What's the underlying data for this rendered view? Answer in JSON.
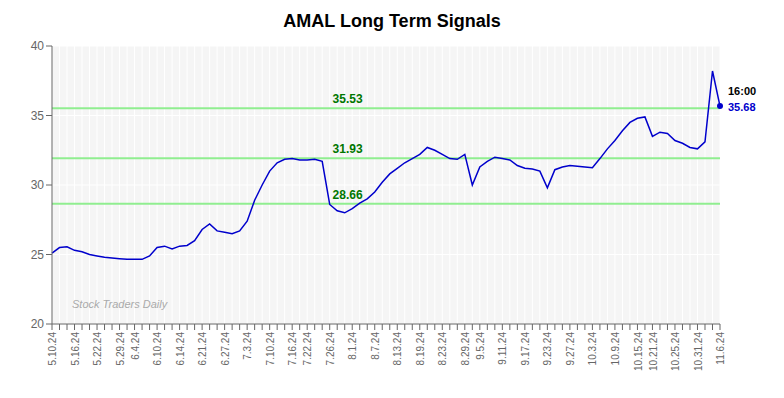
{
  "chart_data": {
    "type": "line",
    "title": "AMAL Long Term Signals",
    "color": "#0000cc",
    "grid": true,
    "ylim": [
      20,
      40
    ],
    "yticks": [
      20,
      25,
      30,
      35,
      40
    ],
    "hlines": [
      {
        "value": 35.53,
        "color": "#90ee90"
      },
      {
        "value": 31.93,
        "color": "#90ee90"
      },
      {
        "value": 28.66,
        "color": "#90ee90"
      }
    ],
    "annotations": [
      {
        "text": "35.53",
        "color": "#007700"
      },
      {
        "text": "31.93",
        "color": "#007700"
      },
      {
        "text": "28.66",
        "color": "#007700"
      }
    ],
    "end_label_time": "16:00",
    "end_label_price": "35.68",
    "watermark": "Stock Traders Daily",
    "categories": [
      "5.10.24",
      null,
      null,
      "5.16.24",
      null,
      null,
      "5.22.24",
      null,
      null,
      "5.29.24",
      null,
      "6.4.24",
      null,
      null,
      "6.10.24",
      null,
      null,
      "6.14.24",
      null,
      null,
      "6.21.24",
      null,
      null,
      "6.27.24",
      null,
      null,
      "7.3.24",
      null,
      null,
      "7.10.24",
      null,
      null,
      "7.16.24",
      null,
      "7.22.24",
      null,
      null,
      "7.26.24",
      null,
      null,
      "8.1.24",
      null,
      null,
      "8.7.24",
      null,
      null,
      "8.13.24",
      null,
      null,
      "8.19.24",
      null,
      null,
      "8.23.24",
      null,
      null,
      "8.29.24",
      null,
      "9.5.24",
      null,
      null,
      "9.11.24",
      null,
      null,
      "9.17.24",
      null,
      null,
      "9.23.24",
      null,
      null,
      "9.27.24",
      null,
      null,
      "10.3.24",
      null,
      null,
      "10.9.24",
      null,
      null,
      "10.15.24",
      null,
      "10.21.24",
      null,
      null,
      "10.25.24",
      null,
      null,
      "10.31.24",
      null,
      null,
      "11.6.24"
    ],
    "values": [
      25.1,
      25.5,
      25.55,
      25.3,
      25.2,
      25.0,
      24.9,
      24.8,
      24.75,
      24.7,
      24.65,
      24.65,
      24.65,
      24.9,
      25.5,
      25.6,
      25.4,
      25.6,
      25.65,
      26.0,
      26.8,
      27.2,
      26.7,
      26.6,
      26.5,
      26.7,
      27.4,
      28.9,
      30.0,
      31.0,
      31.6,
      31.85,
      31.9,
      31.8,
      31.8,
      31.85,
      31.7,
      28.6,
      28.15,
      28.0,
      28.3,
      28.7,
      29.0,
      29.5,
      30.2,
      30.8,
      31.2,
      31.6,
      31.9,
      32.2,
      32.7,
      32.5,
      32.2,
      31.9,
      31.85,
      32.2,
      30.0,
      31.3,
      31.7,
      32.0,
      31.9,
      31.8,
      31.4,
      31.2,
      31.15,
      31.0,
      29.8,
      31.1,
      31.3,
      31.4,
      31.35,
      31.3,
      31.25,
      31.9,
      32.6,
      33.2,
      33.9,
      34.5,
      34.8,
      34.9,
      33.5,
      33.8,
      33.7,
      33.2,
      33.0,
      32.7,
      32.6,
      33.1,
      38.2,
      35.68
    ]
  }
}
